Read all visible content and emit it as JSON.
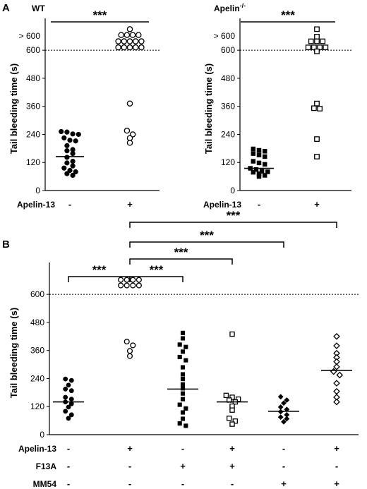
{
  "chart_data": [
    {
      "panel": "A",
      "type": "scatter",
      "title": "WT",
      "title_superscript": "",
      "ylabel": "Tail bleeding time (s)",
      "y_ticks": [
        0,
        120,
        240,
        360,
        480,
        600
      ],
      "y_top_label": "> 600",
      "ylim": [
        0,
        700
      ],
      "cutoff": 600,
      "condition_label": "Apelin-13",
      "categories": [
        "-",
        "+"
      ],
      "series": [
        {
          "marker": "filled-circle",
          "values": [
            252,
            250,
            242,
            240,
            225,
            215,
            212,
            192,
            175,
            170,
            158,
            142,
            125,
            118,
            105,
            96,
            86,
            80,
            72,
            65
          ],
          "mean": 145
        },
        {
          "marker": "open-circle",
          "values": [
            690,
            665,
            665,
            665,
            665,
            638,
            638,
            638,
            638,
            638,
            612,
            612,
            612,
            612,
            612,
            372,
            256,
            240,
            224,
            204
          ],
          "mean": null
        }
      ],
      "significance": [
        {
          "from": 0,
          "to": 1,
          "label": "***"
        }
      ]
    },
    {
      "panel": "",
      "type": "scatter",
      "title": "Apelin",
      "title_superscript": "-/-",
      "ylabel": "Tail bleeding time (s)",
      "y_ticks": [
        0,
        120,
        240,
        360,
        480,
        600
      ],
      "y_top_label": "> 600",
      "ylim": [
        0,
        700
      ],
      "cutoff": 600,
      "condition_label": "Apelin-13",
      "categories": [
        "-",
        "+"
      ],
      "series": [
        {
          "marker": "filled-square",
          "values": [
            178,
            172,
            168,
            158,
            152,
            145,
            125,
            118,
            112,
            95,
            90,
            82,
            80,
            78,
            72,
            65,
            60
          ],
          "mean": 95
        },
        {
          "marker": "open-square",
          "values": [
            690,
            658,
            638,
            638,
            638,
            612,
            612,
            612,
            612,
            595,
            372,
            352,
            350,
            220,
            145
          ],
          "mean": null
        }
      ],
      "significance": [
        {
          "from": 0,
          "to": 1,
          "label": "***"
        }
      ]
    },
    {
      "panel": "B",
      "type": "scatter",
      "title": "",
      "ylabel": "Tail bleeding time (s)",
      "y_ticks": [
        0,
        120,
        240,
        360,
        480,
        600
      ],
      "ylim": [
        0,
        700
      ],
      "cutoff": 600,
      "conditions": [
        {
          "label": "Apelin-13",
          "values": [
            "-",
            "+",
            "-",
            "+",
            "-",
            "+"
          ]
        },
        {
          "label": "F13A",
          "values": [
            "-",
            "-",
            "+",
            "+",
            "-",
            "-"
          ]
        },
        {
          "label": "MM54",
          "values": [
            "-",
            "-",
            "-",
            "-",
            "+",
            "+"
          ]
        }
      ],
      "series": [
        {
          "marker": "filled-circle",
          "values": [
            238,
            232,
            212,
            195,
            188,
            160,
            152,
            140,
            132,
            118,
            100,
            85,
            70
          ],
          "mean": 140
        },
        {
          "marker": "open-circle",
          "values": [
            662,
            662,
            662,
            662,
            638,
            638,
            638,
            638,
            398,
            382,
            358,
            336
          ],
          "mean": null
        },
        {
          "marker": "filled-square",
          "values": [
            435,
            412,
            385,
            375,
            355,
            332,
            318,
            288,
            258,
            238,
            215,
            198,
            176,
            152,
            128,
            112,
            95,
            68,
            48,
            38
          ],
          "mean": 195
        },
        {
          "marker": "open-square",
          "values": [
            430,
            168,
            160,
            152,
            148,
            140,
            122,
            105,
            70,
            58,
            45
          ],
          "mean": 140
        },
        {
          "marker": "filled-diamond",
          "values": [
            162,
            148,
            135,
            118,
            108,
            98,
            85,
            75,
            68,
            55
          ],
          "mean": 100
        },
        {
          "marker": "open-diamond",
          "values": [
            420,
            380,
            348,
            330,
            312,
            290,
            270,
            255,
            220,
            185,
            160,
            140
          ],
          "mean": 275
        }
      ],
      "significance": [
        {
          "from": 0,
          "to": 1,
          "label": "***"
        },
        {
          "from": 1,
          "to": 2,
          "label": "***"
        },
        {
          "from": 1,
          "to": 3,
          "label": "***"
        },
        {
          "from": 1,
          "to": 4,
          "label": "***"
        },
        {
          "from": 1,
          "to": 5,
          "label": "***"
        }
      ]
    }
  ]
}
